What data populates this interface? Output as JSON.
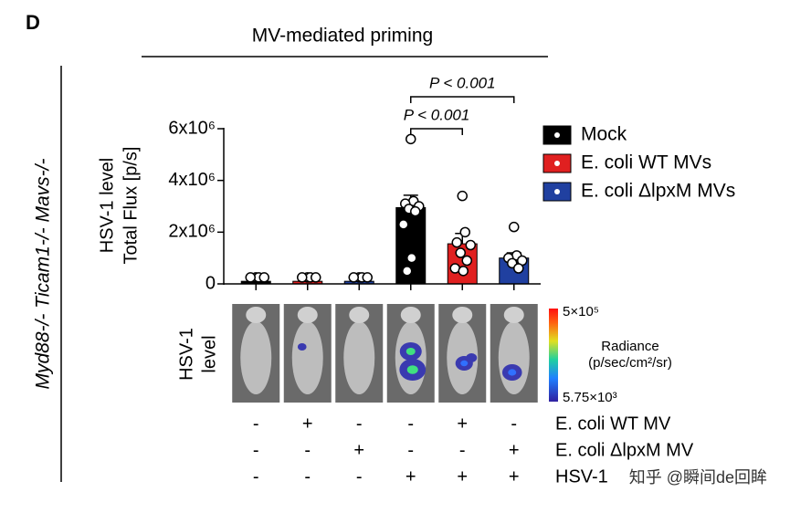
{
  "panel_label": "D",
  "header": "MV-mediated priming",
  "side_label": "Myd88-/- Ticam1-/- Mavs-/-",
  "chart_data": {
    "type": "bar",
    "y_label": [
      "HSV-1 level",
      "Total Flux [p/s]"
    ],
    "categories": [
      null,
      null,
      null,
      null,
      null,
      null
    ],
    "ylim": [
      0,
      6000000
    ],
    "yticks": [
      0,
      {
        "value": 2000000,
        "label": "2x10⁶"
      },
      {
        "value": 4000000,
        "label": "4x10⁶"
      },
      {
        "value": 6000000,
        "label": "6x10⁶"
      }
    ],
    "series": [
      {
        "name": "Mock",
        "color": "#000000",
        "values": [
          100000,
          null,
          null,
          2950000,
          null,
          null
        ],
        "errors": [
          30000,
          null,
          null,
          480000,
          null,
          null
        ],
        "points": [
          [
            250000,
            250000,
            250000,
            250000
          ],
          null,
          null,
          [
            5600000,
            3200000,
            3100000,
            3000000,
            2900000,
            2800000,
            2300000,
            1000000,
            500000
          ],
          null,
          null
        ]
      },
      {
        "name": "E. coli WT MVs",
        "color": "#e02020",
        "values": [
          null,
          100000,
          null,
          null,
          1550000,
          null
        ],
        "errors": [
          null,
          30000,
          null,
          null,
          400000,
          null
        ],
        "points": [
          null,
          [
            250000,
            250000,
            250000,
            250000
          ],
          null,
          null,
          [
            3400000,
            2000000,
            1600000,
            1500000,
            1200000,
            900000,
            600000,
            500000
          ],
          null
        ]
      },
      {
        "name": "E. coli ΔlpxM MVs",
        "color": "#2040a0",
        "values": [
          null,
          null,
          100000,
          null,
          null,
          1000000
        ],
        "errors": [
          null,
          null,
          30000,
          null,
          null,
          200000
        ],
        "points": [
          null,
          null,
          [
            250000,
            250000,
            250000,
            250000
          ],
          null,
          null,
          [
            2200000,
            1100000,
            1000000,
            900000,
            800000,
            600000
          ]
        ]
      }
    ],
    "annotations": [
      {
        "text": "P < 0.001",
        "from": 3,
        "to": 4
      },
      {
        "text": "P < 0.001",
        "from": 3,
        "to": 5
      }
    ]
  },
  "imaging": {
    "row_label": [
      "HSV-1",
      "level"
    ],
    "colorbar_title": [
      "Radiance",
      "(p/sec/cm²/sr)"
    ],
    "colorbar_max": "5×10⁵",
    "colorbar_min": "5.75×10³"
  },
  "treatment_table": [
    {
      "label": "E. coli WT MV",
      "signs": [
        "-",
        "+",
        "-",
        "-",
        "+",
        "-"
      ]
    },
    {
      "label": "E. coli ΔlpxM MV",
      "signs": [
        "-",
        "-",
        "+",
        "-",
        "-",
        "+"
      ]
    },
    {
      "label": "HSV-1",
      "signs": [
        "-",
        "-",
        "-",
        "+",
        "+",
        "+"
      ]
    }
  ],
  "watermark": "知乎 @瞬间de回眸"
}
